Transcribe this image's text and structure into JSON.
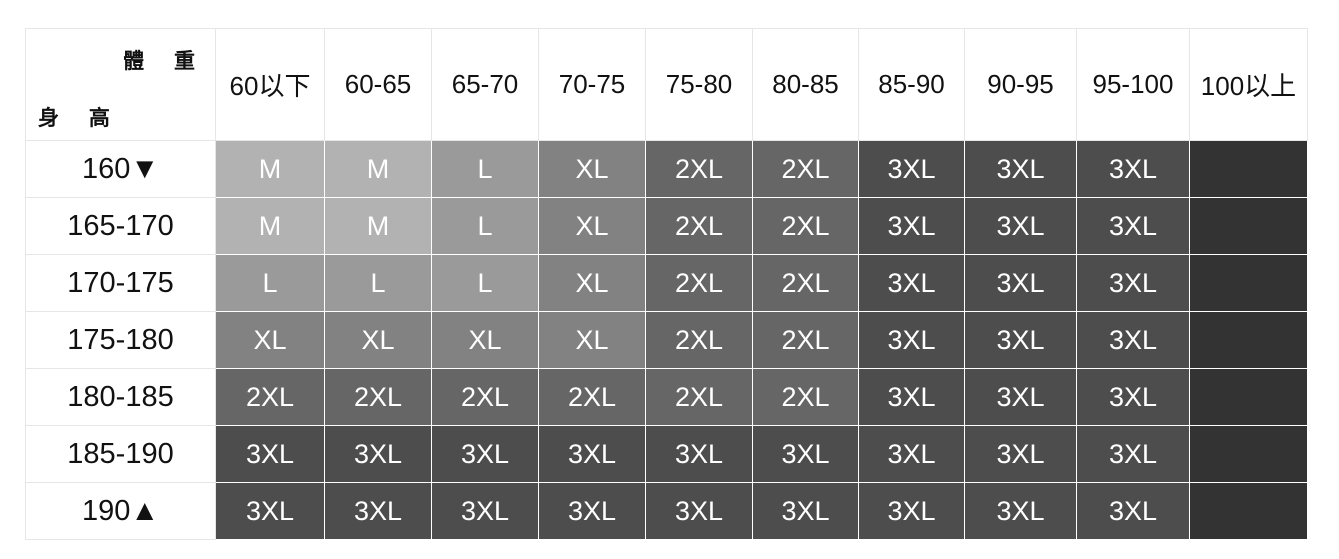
{
  "corner": {
    "weight_label": "體 重",
    "height_label": "身 高"
  },
  "weight_columns": [
    "60以下",
    "60-65",
    "65-70",
    "70-75",
    "75-80",
    "80-85",
    "85-90",
    "90-95",
    "95-100",
    "100以上"
  ],
  "size_colors": {
    "M": "#b2b2b2",
    "L": "#9a9a9a",
    "XL": "#828282",
    "2XL": "#666666",
    "3XL": "#4d4d4d",
    "": "#333333"
  },
  "rows": [
    {
      "height": "160▼",
      "sizes": [
        "M",
        "M",
        "L",
        "XL",
        "2XL",
        "2XL",
        "3XL",
        "3XL",
        "3XL",
        ""
      ]
    },
    {
      "height": "165-170",
      "sizes": [
        "M",
        "M",
        "L",
        "XL",
        "2XL",
        "2XL",
        "3XL",
        "3XL",
        "3XL",
        ""
      ]
    },
    {
      "height": "170-175",
      "sizes": [
        "L",
        "L",
        "L",
        "XL",
        "2XL",
        "2XL",
        "3XL",
        "3XL",
        "3XL",
        ""
      ]
    },
    {
      "height": "175-180",
      "sizes": [
        "XL",
        "XL",
        "XL",
        "XL",
        "2XL",
        "2XL",
        "3XL",
        "3XL",
        "3XL",
        ""
      ]
    },
    {
      "height": "180-185",
      "sizes": [
        "2XL",
        "2XL",
        "2XL",
        "2XL",
        "2XL",
        "2XL",
        "3XL",
        "3XL",
        "3XL",
        ""
      ]
    },
    {
      "height": "185-190",
      "sizes": [
        "3XL",
        "3XL",
        "3XL",
        "3XL",
        "3XL",
        "3XL",
        "3XL",
        "3XL",
        "3XL",
        ""
      ]
    },
    {
      "height": "190▲",
      "sizes": [
        "3XL",
        "3XL",
        "3XL",
        "3XL",
        "3XL",
        "3XL",
        "3XL",
        "3XL",
        "3XL",
        ""
      ]
    }
  ]
}
